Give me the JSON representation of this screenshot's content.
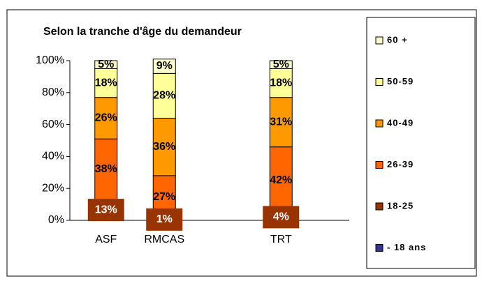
{
  "chart_data": {
    "type": "stacked_bar",
    "title": "Selon la tranche d'âge du demandeur",
    "categories": [
      "ASF",
      "RMCAS",
      null,
      "TRT"
    ],
    "series": [
      {
        "name": "- 18 ans",
        "color": "#333399",
        "values": [
          0,
          0,
          null,
          0
        ]
      },
      {
        "name": "18-25",
        "color": "#993300",
        "values": [
          13,
          1,
          null,
          4
        ],
        "value_labels": [
          "13%",
          "1%",
          null,
          "4%"
        ]
      },
      {
        "name": "26-39",
        "color": "#ff6600",
        "values": [
          38,
          27,
          null,
          42
        ],
        "value_labels": [
          "38%",
          "27%",
          null,
          "42%"
        ]
      },
      {
        "name": "40-49",
        "color": "#ff9900",
        "values": [
          26,
          36,
          null,
          31
        ],
        "value_labels": [
          "26%",
          "36%",
          null,
          "31%"
        ]
      },
      {
        "name": "50-59",
        "color": "#ffff99",
        "values": [
          18,
          28,
          null,
          18
        ],
        "value_labels": [
          "18%",
          "28%",
          null,
          "18%"
        ]
      },
      {
        "name": "60 +",
        "color": "#ffffcc",
        "values": [
          5,
          9,
          null,
          5
        ],
        "value_labels": [
          "5%",
          "9%",
          null,
          "5%"
        ]
      }
    ],
    "ylim": [
      0,
      100
    ],
    "yticks": [
      {
        "value": 0,
        "label": "0%"
      },
      {
        "value": 20,
        "label": "20%"
      },
      {
        "value": 40,
        "label": "40%"
      },
      {
        "value": 60,
        "label": "60%"
      },
      {
        "value": 80,
        "label": "80%"
      },
      {
        "value": 100,
        "label": "100%"
      }
    ],
    "legend": "right"
  }
}
